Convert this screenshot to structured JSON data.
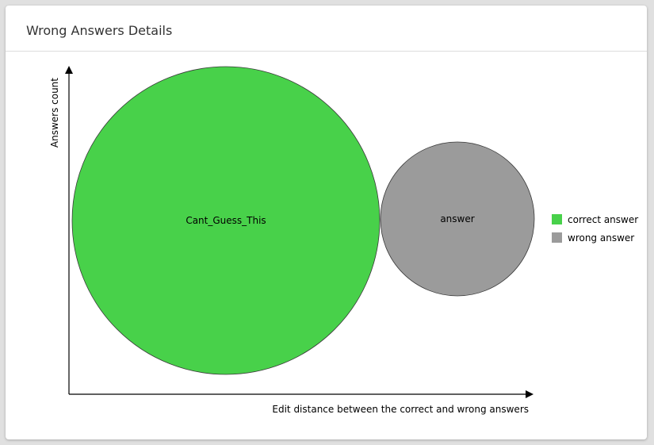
{
  "card": {
    "title": "Wrong Answers Details"
  },
  "chart_data": {
    "type": "bubble",
    "title": "",
    "xlabel": "Edit distance between the correct and wrong answers",
    "ylabel": "Answers count",
    "bubbles": [
      {
        "label": "Cant_Guess_This",
        "category": "correct answer",
        "relative_size": 1.0
      },
      {
        "label": "answer",
        "category": "wrong answer",
        "relative_size": 0.5
      }
    ],
    "legend": {
      "position": "right",
      "entries": [
        {
          "name": "correct answer",
          "color": "#48d14a"
        },
        {
          "name": "wrong answer",
          "color": "#9b9b9b"
        }
      ]
    },
    "grid": false
  }
}
